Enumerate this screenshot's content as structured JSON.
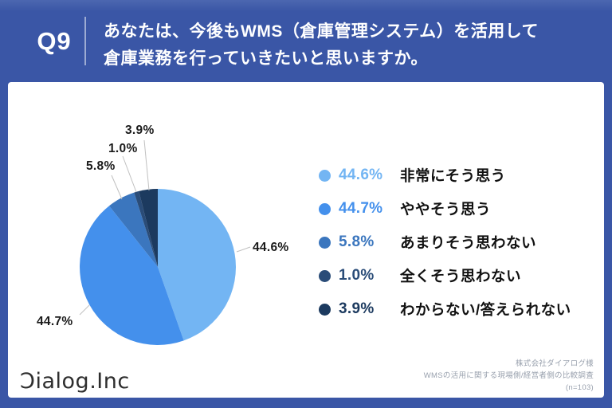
{
  "header": {
    "question_no": "Q9",
    "question_line1": "あなたは、今後もWMS（倉庫管理システム）を活用して",
    "question_line2": "倉庫業務を行っていきたいと思いますか。"
  },
  "chart_data": {
    "type": "pie",
    "title": "あなたは、今後もWMS（倉庫管理システム）を活用して倉庫業務を行っていきたいと思いますか。",
    "categories": [
      "非常にそう思う",
      "ややそう思う",
      "あまりそう思わない",
      "全くそう思わない",
      "わからない/答えられない"
    ],
    "values": [
      44.6,
      44.7,
      5.8,
      1.0,
      3.9
    ],
    "labels_pct": [
      "44.6%",
      "44.7%",
      "5.8%",
      "1.0%",
      "3.9%"
    ],
    "colors": [
      "#73B5F3",
      "#4490EC",
      "#3B76BE",
      "#2A4C78",
      "#1C3A5F"
    ],
    "unit": "%",
    "start_angle_deg": 0,
    "direction": "clockwise",
    "legend_position": "right",
    "sample_size": 103
  },
  "footer": {
    "logo_text": "Ɔialog.Inc",
    "credit_line1": "株式会社ダイアログ様",
    "credit_line2": "WMSの活用に関する現場側/経営者側の比較調査",
    "credit_line3": "(n=103)"
  },
  "colors": {
    "background": "#3A56A6",
    "card": "#FFFFFF",
    "leader_line": "#C0C0C0",
    "credit_text": "#98A0AD"
  }
}
